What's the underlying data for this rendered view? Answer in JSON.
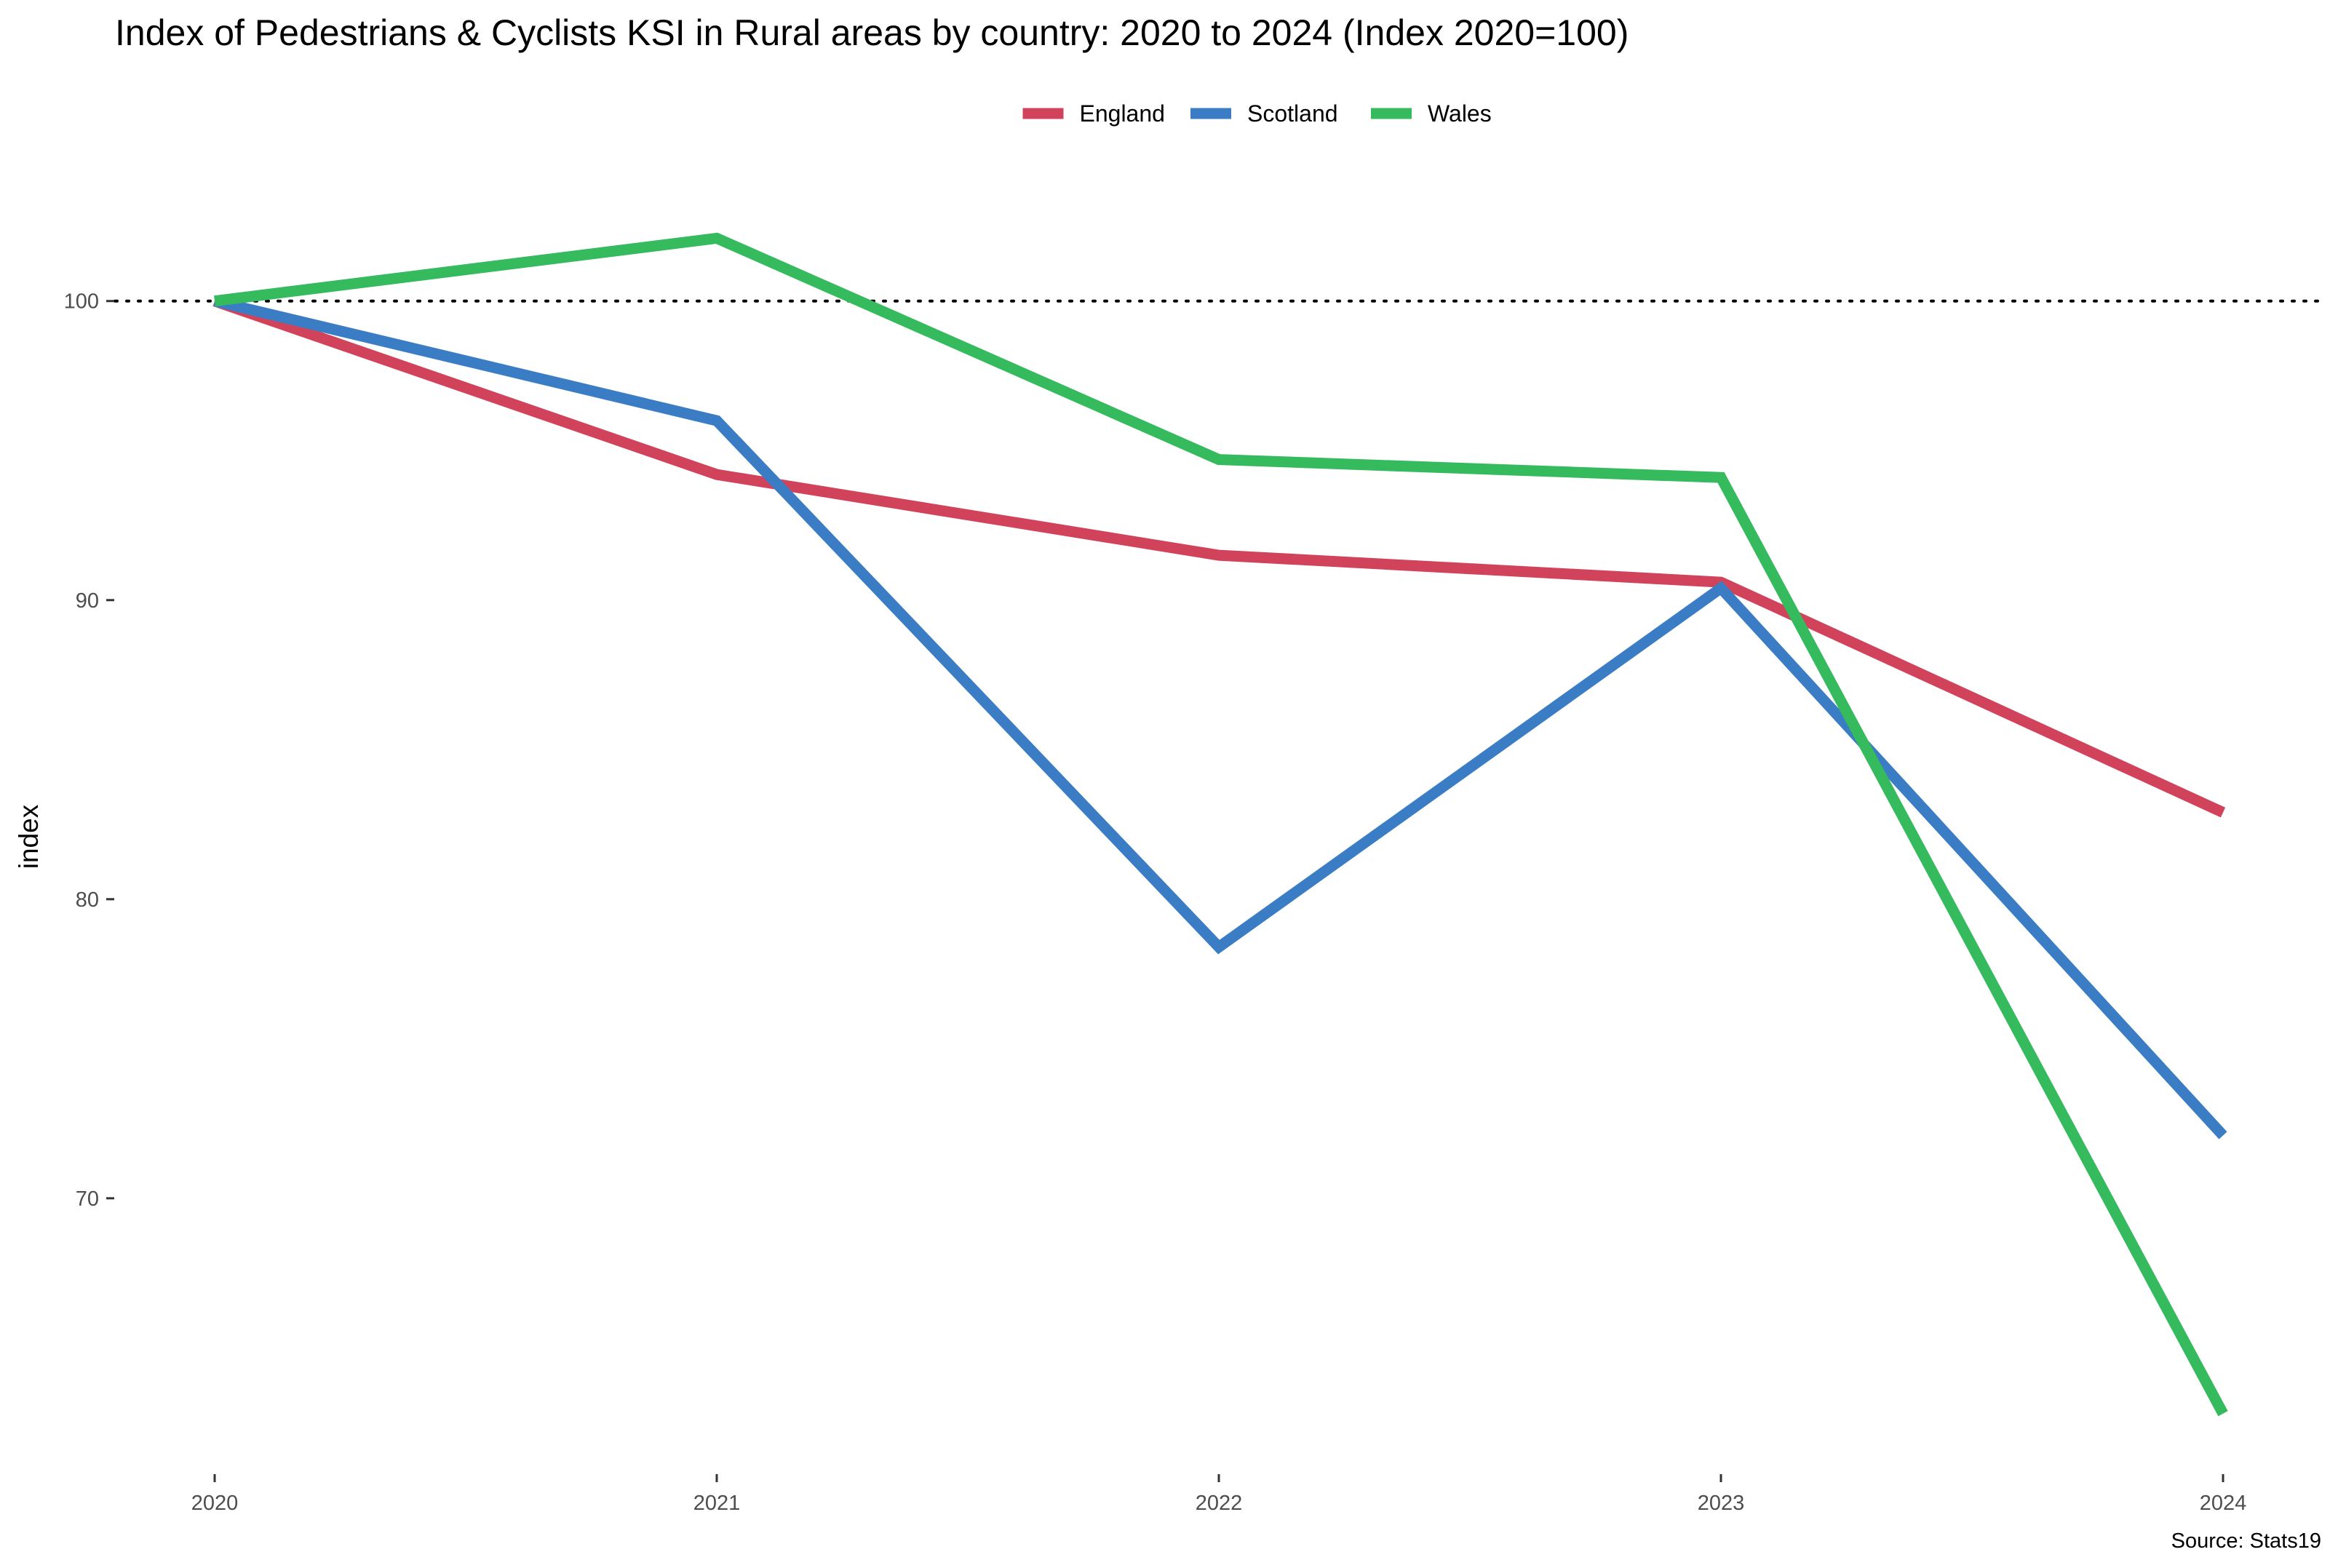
{
  "chart_data": {
    "type": "line",
    "title": "Index of Pedestrians & Cyclists KSI in Rural areas by country: 2020 to 2024 (Index 2020=100)",
    "xlabel": "",
    "ylabel": "index",
    "caption": "Source: Stats19",
    "x": [
      "2020",
      "2021",
      "2022",
      "2023",
      "2024"
    ],
    "xlim": [
      2020,
      2024
    ],
    "ylim": [
      60.8,
      105.2
    ],
    "yticks": [
      70,
      80,
      90,
      100
    ],
    "ytick_labels": [
      "70",
      "80",
      "90",
      "100"
    ],
    "reference_line": {
      "value": 100,
      "style": "dotted",
      "color": "#000000"
    },
    "grid": false,
    "legend_position": "top-center",
    "series": [
      {
        "name": "England",
        "color": "#D1435B",
        "values": [
          100,
          94.2,
          91.5,
          90.6,
          82.9
        ]
      },
      {
        "name": "Scotland",
        "color": "#3B7DC4",
        "values": [
          100,
          96.0,
          78.4,
          90.4,
          72.1
        ]
      },
      {
        "name": "Wales",
        "color": "#35BA5E",
        "values": [
          100,
          102.1,
          94.7,
          94.1,
          62.8
        ]
      }
    ]
  }
}
